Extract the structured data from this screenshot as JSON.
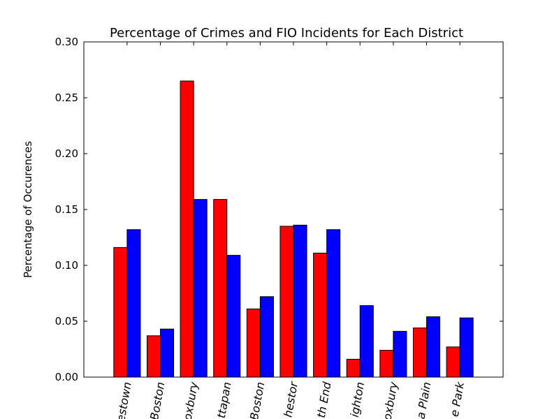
{
  "chart_data": {
    "type": "bar",
    "title": "Percentage of Crimes and FIO Incidents for Each District",
    "xlabel": "",
    "ylabel": "Percentage of Occurences",
    "ylim": [
      0,
      0.3
    ],
    "yticks": [
      "0.00",
      "0.05",
      "0.10",
      "0.15",
      "0.20",
      "0.25",
      "0.30"
    ],
    "grid": false,
    "legend": "none",
    "categories": [
      "estown",
      "Boston",
      "oxbury",
      "ttapan",
      "Boston",
      "hestor",
      "th End",
      "ighton",
      "oxbury",
      "a Plain",
      "e Park"
    ],
    "series": [
      {
        "color": "#ff0000",
        "values": [
          0.116,
          0.037,
          0.265,
          0.159,
          0.061,
          0.135,
          0.111,
          0.016,
          0.024,
          0.044,
          0.027
        ]
      },
      {
        "color": "#0000ff",
        "values": [
          0.132,
          0.043,
          0.159,
          0.109,
          0.072,
          0.136,
          0.132,
          0.064,
          0.041,
          0.054,
          0.053
        ]
      }
    ]
  }
}
